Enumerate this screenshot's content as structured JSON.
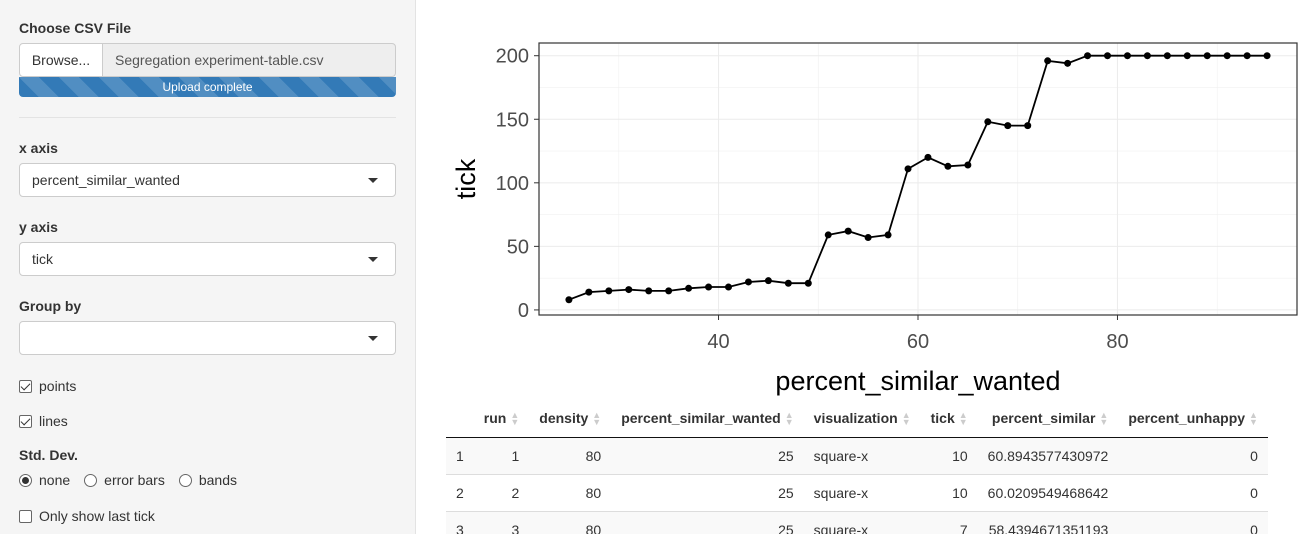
{
  "sidebar": {
    "file_label": "Choose CSV File",
    "browse_label": "Browse...",
    "file_name": "Segregation experiment-table.csv",
    "upload_status": "Upload complete",
    "upload_progress": 1.0,
    "x_axis_label": "x axis",
    "x_axis_value": "percent_similar_wanted",
    "y_axis_label": "y axis",
    "y_axis_value": "tick",
    "group_by_label": "Group by",
    "group_by_value": "",
    "points_label": "points",
    "points_checked": true,
    "lines_label": "lines",
    "lines_checked": true,
    "stddev_label": "Std. Dev.",
    "stddev_options": [
      "none",
      "error bars",
      "bands"
    ],
    "stddev_selected": "none",
    "last_tick_label": "Only show last tick",
    "last_tick_checked": false
  },
  "chart_data": {
    "type": "line",
    "xlabel": "percent_similar_wanted",
    "ylabel": "tick",
    "xlim": [
      22,
      98
    ],
    "ylim": [
      -4,
      210
    ],
    "xticks": [
      40,
      60,
      80
    ],
    "yticks": [
      0,
      50,
      100,
      150,
      200
    ],
    "grid": true,
    "x": [
      25,
      27,
      29,
      31,
      33,
      35,
      37,
      39,
      41,
      43,
      45,
      47,
      49,
      51,
      53,
      55,
      57,
      59,
      61,
      63,
      65,
      67,
      69,
      71,
      73,
      75,
      77,
      79,
      81,
      83,
      85,
      87,
      89,
      91,
      93,
      95
    ],
    "y": [
      8,
      14,
      15,
      16,
      15,
      15,
      17,
      18,
      18,
      22,
      23,
      21,
      21,
      59,
      62,
      57,
      59,
      111,
      120,
      113,
      114,
      148,
      145,
      145,
      196,
      194,
      200,
      200,
      200,
      200,
      200,
      200,
      200,
      200,
      200,
      200
    ]
  },
  "table": {
    "columns": [
      "",
      "run",
      "density",
      "percent_similar_wanted",
      "visualization",
      "tick",
      "percent_similar",
      "percent_unhappy"
    ],
    "rows": [
      [
        "1",
        "1",
        "80",
        "25",
        "square-x",
        "10",
        "60.8943577430972",
        "0"
      ],
      [
        "2",
        "2",
        "80",
        "25",
        "square-x",
        "10",
        "60.0209549468642",
        "0"
      ],
      [
        "3",
        "3",
        "80",
        "25",
        "square-x",
        "7",
        "58.4394671351193",
        "0"
      ]
    ]
  }
}
